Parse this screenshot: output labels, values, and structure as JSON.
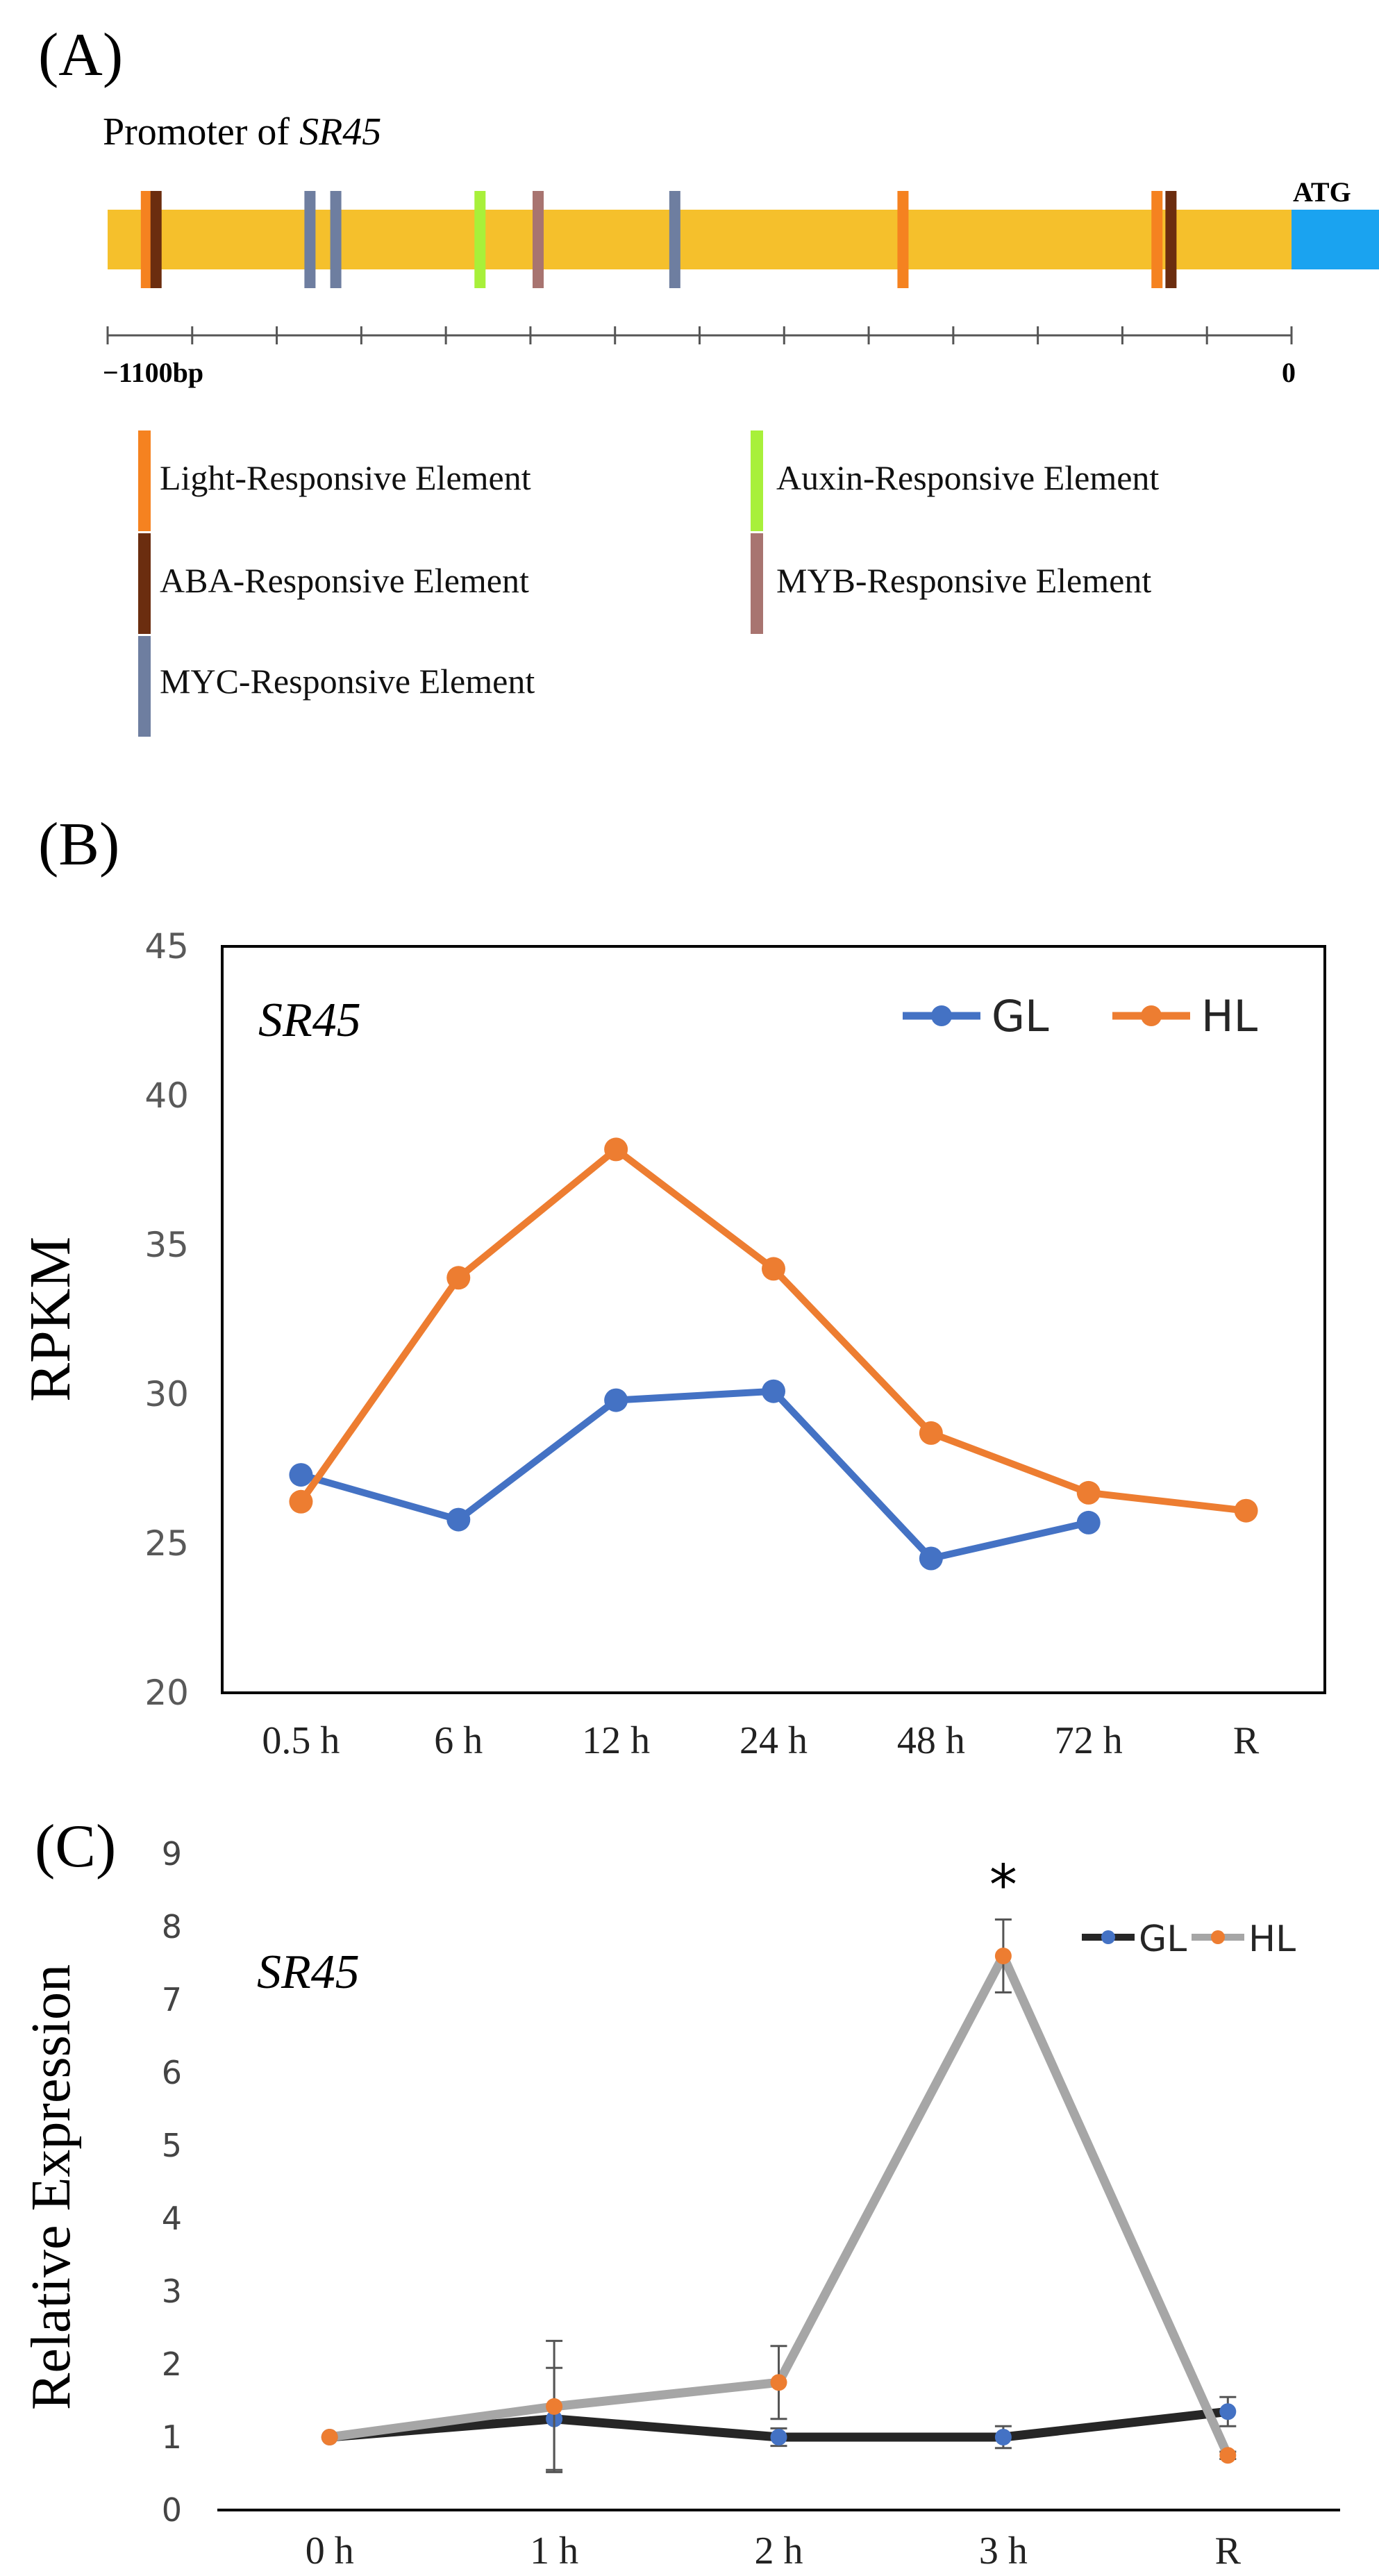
{
  "colors": {
    "promoter": "#F5C02C",
    "atg": "#1AA3F0",
    "light": "#F58220",
    "aba": "#6B2D0F",
    "myc": "#6E7EA0",
    "auxin": "#A8F03A",
    "myb": "#A87470",
    "gl_b": "#4472C4",
    "hl_b": "#ED7D31",
    "gl_c_line": "#262626",
    "hl_c_line": "#A6A6A6",
    "axis": "#000000",
    "tick_text_b": "#595959"
  },
  "panel_a": {
    "label": "(A)",
    "title_prefix": "Promoter of ",
    "gene": "SR45",
    "atg_label": "ATG",
    "scale_left": "−1100bp",
    "scale_right": "0",
    "scale_min": -1100,
    "scale_max": 0,
    "elements": [
      {
        "type": "light",
        "pos": -1064
      },
      {
        "type": "aba",
        "pos": -1055
      },
      {
        "type": "myc",
        "pos": -912
      },
      {
        "type": "myc",
        "pos": -888
      },
      {
        "type": "auxin",
        "pos": -754
      },
      {
        "type": "myb",
        "pos": -700
      },
      {
        "type": "myc",
        "pos": -573
      },
      {
        "type": "light",
        "pos": -361
      },
      {
        "type": "light",
        "pos": -125
      },
      {
        "type": "aba",
        "pos": -112
      }
    ],
    "legend": [
      {
        "type": "light",
        "label": "Light-Responsive Element"
      },
      {
        "type": "aba",
        "label": "ABA-Responsive Element"
      },
      {
        "type": "myc",
        "label": "MYC-Responsive Element"
      },
      {
        "type": "auxin",
        "label": "Auxin-Responsive Element"
      },
      {
        "type": "myb",
        "label": "MYB-Responsive Element"
      }
    ]
  },
  "chart_data": [
    {
      "type": "line",
      "label": "(B)",
      "title": "SR45",
      "xlabel": "",
      "ylabel": "RPKM",
      "categories": [
        "0.5 h",
        "6 h",
        "12 h",
        "24 h",
        "48 h",
        "72 h",
        "R"
      ],
      "ylim": [
        20,
        45
      ],
      "yticks": [
        20,
        25,
        30,
        35,
        40,
        45
      ],
      "legend_position": "top-right",
      "series": [
        {
          "name": "GL",
          "values": [
            27.3,
            25.8,
            29.8,
            30.1,
            24.5,
            25.7,
            null
          ]
        },
        {
          "name": "HL",
          "values": [
            26.4,
            33.9,
            38.2,
            34.2,
            28.7,
            26.7,
            26.1
          ]
        }
      ]
    },
    {
      "type": "line",
      "label": "(C)",
      "title": "SR45",
      "xlabel": "",
      "ylabel": "Relative Expression",
      "categories": [
        "0 h",
        "1 h",
        "2 h",
        "3 h",
        "R"
      ],
      "ylim": [
        0,
        9
      ],
      "yticks": [
        0,
        1,
        2,
        3,
        4,
        5,
        6,
        7,
        8,
        9
      ],
      "legend_position": "top-right",
      "annotation": "*",
      "annotation_index": 3,
      "series": [
        {
          "name": "GL",
          "values": [
            1.0,
            1.25,
            1.0,
            1.0,
            1.35
          ],
          "errors": [
            0.0,
            0.7,
            0.12,
            0.15,
            0.2
          ]
        },
        {
          "name": "HL",
          "values": [
            1.0,
            1.42,
            1.75,
            7.6,
            0.75
          ],
          "errors": [
            0.0,
            0.9,
            0.5,
            0.5,
            0.05
          ]
        }
      ]
    }
  ]
}
